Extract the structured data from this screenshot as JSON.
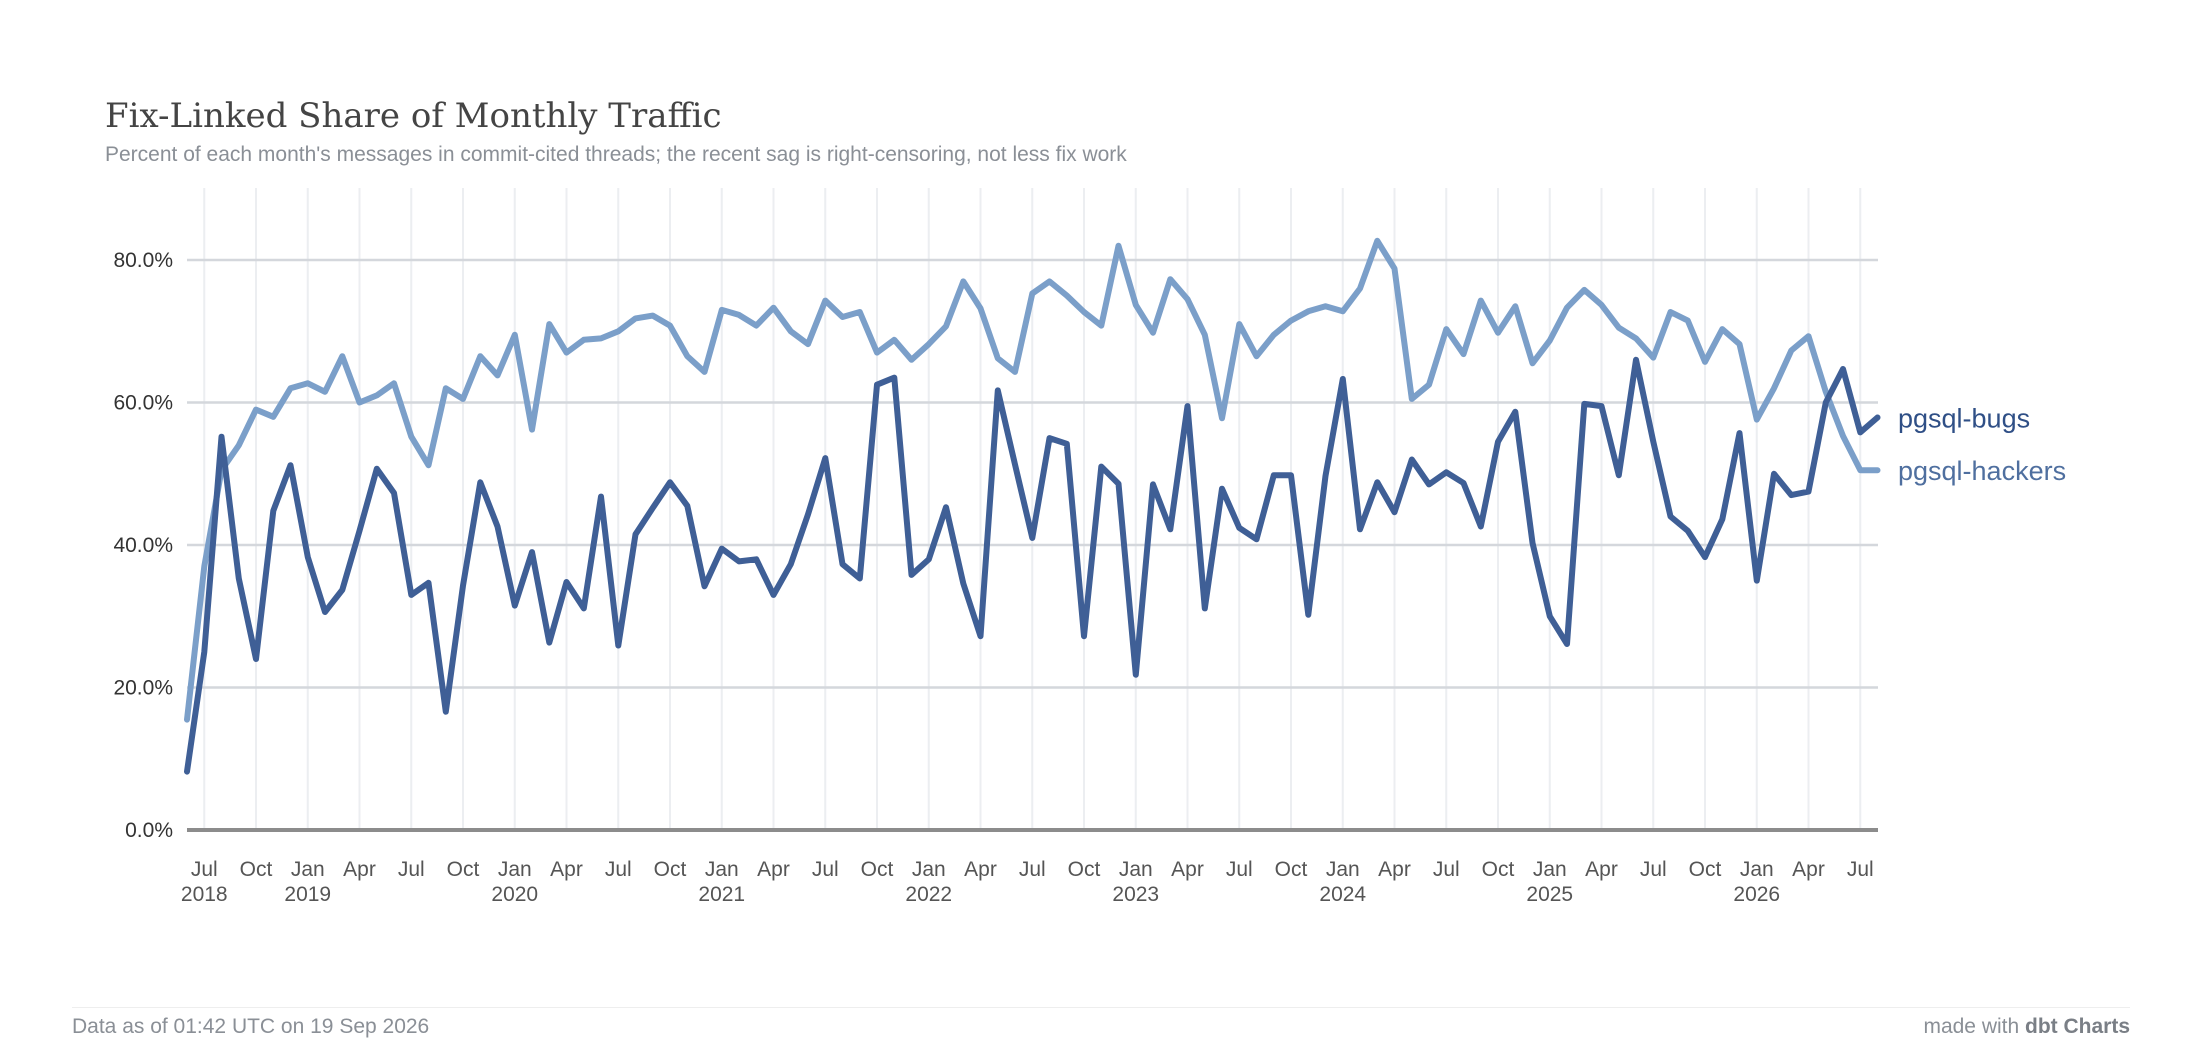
{
  "header": {
    "title": "Fix-Linked Share of Monthly Traffic",
    "subtitle": "Percent of each month's messages in commit-cited threads; the recent sag is right-censoring, not less fix work"
  },
  "footer": {
    "data_as_of": "Data as of 01:42 UTC on 19 Sep 2026",
    "made_with_prefix": "made with ",
    "made_with_brand": "dbt Charts"
  },
  "chart_data": {
    "type": "line",
    "title": "Fix-Linked Share of Monthly Traffic",
    "xlabel": "",
    "ylabel": "",
    "ylim": [
      0,
      90
    ],
    "yticks": [
      "0.0%",
      "20.0%",
      "40.0%",
      "60.0%",
      "80.0%"
    ],
    "ytick_values": [
      0,
      20,
      40,
      60,
      80
    ],
    "grid": true,
    "legend": "right, inline labels at line ends",
    "x_start": "2018-06",
    "x_ticks": [
      {
        "label": "Jul",
        "year": "2018",
        "month_index": 1
      },
      {
        "label": "Oct",
        "year": "",
        "month_index": 4
      },
      {
        "label": "Jan",
        "year": "2019",
        "month_index": 7
      },
      {
        "label": "Apr",
        "year": "",
        "month_index": 10
      },
      {
        "label": "Jul",
        "year": "",
        "month_index": 13
      },
      {
        "label": "Oct",
        "year": "",
        "month_index": 16
      },
      {
        "label": "Jan",
        "year": "2020",
        "month_index": 19
      },
      {
        "label": "Apr",
        "year": "",
        "month_index": 22
      },
      {
        "label": "Jul",
        "year": "",
        "month_index": 25
      },
      {
        "label": "Oct",
        "year": "",
        "month_index": 28
      },
      {
        "label": "Jan",
        "year": "2021",
        "month_index": 31
      },
      {
        "label": "Apr",
        "year": "",
        "month_index": 34
      },
      {
        "label": "Jul",
        "year": "",
        "month_index": 37
      },
      {
        "label": "Oct",
        "year": "",
        "month_index": 40
      },
      {
        "label": "Jan",
        "year": "2022",
        "month_index": 43
      },
      {
        "label": "Apr",
        "year": "",
        "month_index": 46
      },
      {
        "label": "Jul",
        "year": "",
        "month_index": 49
      },
      {
        "label": "Oct",
        "year": "",
        "month_index": 52
      },
      {
        "label": "Jan",
        "year": "2023",
        "month_index": 55
      },
      {
        "label": "Apr",
        "year": "",
        "month_index": 58
      },
      {
        "label": "Jul",
        "year": "",
        "month_index": 61
      },
      {
        "label": "Oct",
        "year": "",
        "month_index": 64
      },
      {
        "label": "Jan",
        "year": "2024",
        "month_index": 67
      },
      {
        "label": "Apr",
        "year": "",
        "month_index": 70
      },
      {
        "label": "Jul",
        "year": "",
        "month_index": 73
      },
      {
        "label": "Oct",
        "year": "",
        "month_index": 76
      },
      {
        "label": "Jan",
        "year": "2025",
        "month_index": 79
      },
      {
        "label": "Apr",
        "year": "",
        "month_index": 82
      },
      {
        "label": "Jul",
        "year": "",
        "month_index": 85
      },
      {
        "label": "Oct",
        "year": "",
        "month_index": 88
      },
      {
        "label": "Jan",
        "year": "2026",
        "month_index": 91
      },
      {
        "label": "Apr",
        "year": "",
        "month_index": 94
      },
      {
        "label": "Jul",
        "year": "",
        "month_index": 97
      }
    ],
    "series": [
      {
        "name": "pgsql-hackers",
        "color": "#7b9fc9",
        "values": [
          15.5,
          37.0,
          50.5,
          54.0,
          59.0,
          58.0,
          62.0,
          62.7,
          61.5,
          66.5,
          60.0,
          61.0,
          62.7,
          55.2,
          51.2,
          62.0,
          60.5,
          66.5,
          63.8,
          69.5,
          56.2,
          71.0,
          67.0,
          68.8,
          69.0,
          70.0,
          71.8,
          72.2,
          70.8,
          66.5,
          64.3,
          73.0,
          72.3,
          70.8,
          73.3,
          70.0,
          68.2,
          74.3,
          72.0,
          72.7,
          67.0,
          68.8,
          66.0,
          68.2,
          70.7,
          77.0,
          73.2,
          66.2,
          64.3,
          75.3,
          77.0,
          75.0,
          72.7,
          70.8,
          82.0,
          73.7,
          69.8,
          77.3,
          74.5,
          69.5,
          57.8,
          71.0,
          66.5,
          69.5,
          71.5,
          72.8,
          73.5,
          72.8,
          76.0,
          82.7,
          78.8,
          60.5,
          62.5,
          70.3,
          66.8,
          74.3,
          69.8,
          73.5,
          65.5,
          68.7,
          73.3,
          75.8,
          73.7,
          70.5,
          69.0,
          66.3,
          72.7,
          71.5,
          65.7,
          70.3,
          68.2,
          57.6,
          62.0,
          67.3,
          69.3,
          61.5,
          55.3,
          50.5,
          50.5
        ]
      },
      {
        "name": "pgsql-bugs",
        "color": "#3f5f96",
        "values": [
          8.2,
          25.0,
          55.2,
          35.3,
          24.0,
          44.8,
          51.2,
          38.3,
          30.6,
          33.7,
          42.0,
          50.7,
          47.3,
          33.0,
          34.7,
          16.6,
          34.3,
          48.8,
          42.6,
          31.5,
          39.0,
          26.3,
          34.8,
          31.1,
          46.8,
          25.9,
          41.5,
          45.2,
          48.8,
          45.5,
          34.2,
          39.5,
          37.7,
          38.0,
          33.0,
          37.3,
          44.3,
          52.2,
          37.3,
          35.3,
          62.5,
          63.5,
          35.8,
          38.0,
          45.3,
          34.6,
          27.2,
          61.7,
          51.3,
          41.0,
          55.0,
          54.2,
          27.2,
          51.0,
          48.6,
          21.8,
          48.5,
          42.2,
          59.5,
          31.1,
          47.9,
          42.4,
          40.8,
          49.8,
          49.8,
          30.2,
          49.7,
          63.3,
          42.2,
          48.8,
          44.6,
          52.0,
          48.5,
          50.2,
          48.7,
          42.6,
          54.5,
          58.7,
          40.3,
          30.0,
          26.1,
          59.8,
          59.5,
          49.8,
          66.0,
          54.5,
          44.0,
          42.0,
          38.3,
          43.6,
          55.7,
          35.0,
          50.0,
          47.0,
          47.5,
          60.0,
          64.7,
          55.8,
          57.9
        ]
      }
    ]
  }
}
